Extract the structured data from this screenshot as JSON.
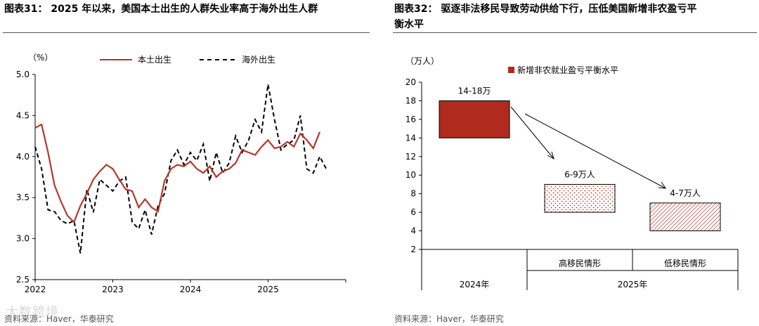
{
  "left_panel": {
    "title": "图表31：  2025 年以来，美国本土出生的人群失业率高于海外出生人群",
    "source": "资料来源：Haver，华泰研究",
    "watermark": "大数跨境"
  },
  "right_panel": {
    "title_line1": "图表32：  驱逐非法移民导致劳动供给下行，压低美国新增非农盈亏平",
    "title_line2": "衡水平",
    "source": "资料来源：Haver，华泰研究"
  },
  "colors": {
    "native": "#b5372b",
    "foreign": "#000000",
    "bar": "#b02a1e",
    "dots": "#c0392b"
  },
  "chart_data": [
    {
      "type": "line",
      "unit_label": "（%）",
      "ylim": [
        2.5,
        5.0
      ],
      "yticks": [
        "2.5",
        "3.0",
        "3.5",
        "4.0",
        "4.5",
        "5.0"
      ],
      "xticks": [
        "2022",
        "2023",
        "2024",
        "2025"
      ],
      "x_start": 2022.0,
      "x_step": 0.0833,
      "grid": false,
      "legend_position": "top",
      "series": [
        {
          "name": "本土出生",
          "style": "solid",
          "values": [
            4.35,
            4.39,
            4.05,
            3.65,
            3.45,
            3.28,
            3.2,
            3.4,
            3.55,
            3.72,
            3.82,
            3.9,
            3.85,
            3.72,
            3.6,
            3.58,
            3.38,
            3.48,
            3.38,
            3.33,
            3.7,
            3.85,
            3.9,
            3.88,
            3.94,
            3.85,
            3.8,
            3.88,
            3.75,
            3.82,
            3.85,
            3.92,
            4.08,
            4.05,
            4.02,
            4.12,
            4.2,
            4.1,
            4.12,
            4.18,
            4.12,
            4.28,
            4.2,
            4.1,
            4.3
          ]
        },
        {
          "name": "海外出生",
          "style": "dashed",
          "values": [
            4.12,
            3.85,
            3.35,
            3.33,
            3.22,
            3.18,
            3.22,
            2.82,
            3.6,
            3.32,
            3.72,
            3.65,
            3.58,
            3.7,
            3.75,
            3.2,
            3.12,
            3.35,
            3.05,
            3.4,
            3.55,
            3.95,
            4.08,
            3.9,
            4.05,
            3.95,
            4.15,
            3.7,
            4.05,
            3.8,
            3.92,
            4.25,
            4.05,
            4.2,
            4.45,
            4.3,
            4.88,
            4.45,
            4.08,
            4.15,
            4.2,
            4.5,
            3.85,
            3.8,
            4.0,
            3.85
          ]
        }
      ]
    },
    {
      "type": "bar",
      "unit_label": "（万人）",
      "ylim": [
        2,
        20
      ],
      "yticks": [
        "2",
        "4",
        "6",
        "8",
        "10",
        "12",
        "14",
        "16",
        "18",
        "20"
      ],
      "legend": "新增非农就业盈亏平衡水平",
      "legend_position": "top",
      "categories": [
        "2024年",
        "高移民情形",
        "低移民情形"
      ],
      "group_label": "2025年",
      "ranges": [
        [
          14,
          18
        ],
        [
          6,
          9
        ],
        [
          4,
          7
        ]
      ],
      "labels": [
        "14-18万",
        "6-9万人",
        "4-7万人"
      ],
      "fills": [
        "solid",
        "dots",
        "hatch"
      ]
    }
  ]
}
